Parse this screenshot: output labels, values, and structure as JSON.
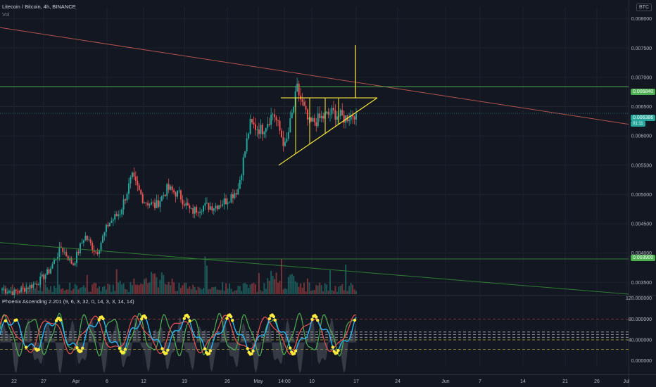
{
  "header": {
    "symbol_line": "Litecoin / Bitcoin, 4h, BINANCE",
    "vol_label": "Vol",
    "indicator_label": "Phoenix Ascending 2.201 (9, 6, 3, 32, 0, 14, 3, 3, 14, 14)",
    "currency_badge": "BTC"
  },
  "colors": {
    "background": "#131722",
    "grid": "#1e222d",
    "up": "#26a69a",
    "down": "#ef5350",
    "pattern": "#ffeb3b",
    "resistance": "#4caf50",
    "trend_red": "#b2524d",
    "trend_green": "#2e7d32",
    "last_price": "#26a69a"
  },
  "price_tags": {
    "resistance": "0.006840",
    "current": "0.006386",
    "countdown": "01:11",
    "support": "0.003900"
  },
  "chart_data": [
    {
      "type": "candlestick",
      "title": "Litecoin / Bitcoin, 4h, BINANCE",
      "y_axis_ticks": [
        "0.008000",
        "0.007500",
        "0.007000",
        "0.006500",
        "0.006000",
        "0.005500",
        "0.005000",
        "0.004500",
        "0.004000",
        "0.003500"
      ],
      "ylim": [
        0.0033,
        0.0082
      ],
      "x_axis_ticks": [
        "22",
        "27",
        "Apr",
        "6",
        "12",
        "19",
        "26",
        "May",
        "14:00",
        "10",
        "17",
        "24",
        "Jun",
        "7",
        "14",
        "21",
        "26",
        "Jul"
      ],
      "waypoints_close": [
        0.00338,
        0.00333,
        0.0034,
        0.0035,
        0.0037,
        0.0041,
        0.0038,
        0.0043,
        0.004,
        0.0045,
        0.0047,
        0.0053,
        0.0049,
        0.0048,
        0.0051,
        0.005,
        0.0047,
        0.0048,
        0.0048,
        0.0049,
        0.0051,
        0.0062,
        0.0061,
        0.0064,
        0.0058,
        0.0068,
        0.0062,
        0.0063,
        0.0064,
        0.0063,
        0.0064
      ],
      "last_price": 0.006386,
      "horizontal_levels": [
        0.00684,
        0.0039
      ],
      "trendlines": [
        {
          "name": "descending-resistance",
          "from": [
            "22",
            0.00785
          ],
          "to": [
            "Jul",
            0.0062
          ]
        },
        {
          "name": "descending-support",
          "from": [
            "22",
            0.00418
          ],
          "to": [
            "Jul",
            0.0033
          ]
        }
      ],
      "pattern": {
        "type": "ascending-triangle",
        "top": 0.00665,
        "bottom_start": 0.0055,
        "breakout_target": 0.00755
      }
    },
    {
      "type": "line",
      "title": "Phoenix Ascending 2.201 (9, 6, 3, 32, 0, 14, 3, 3, 14, 14)",
      "y_axis_ticks": [
        "120.000000",
        "80.000000",
        "40.000000",
        "0.000000"
      ],
      "ylim": [
        -10,
        125
      ],
      "levels": [
        80,
        55,
        50,
        45,
        40,
        22
      ]
    }
  ]
}
